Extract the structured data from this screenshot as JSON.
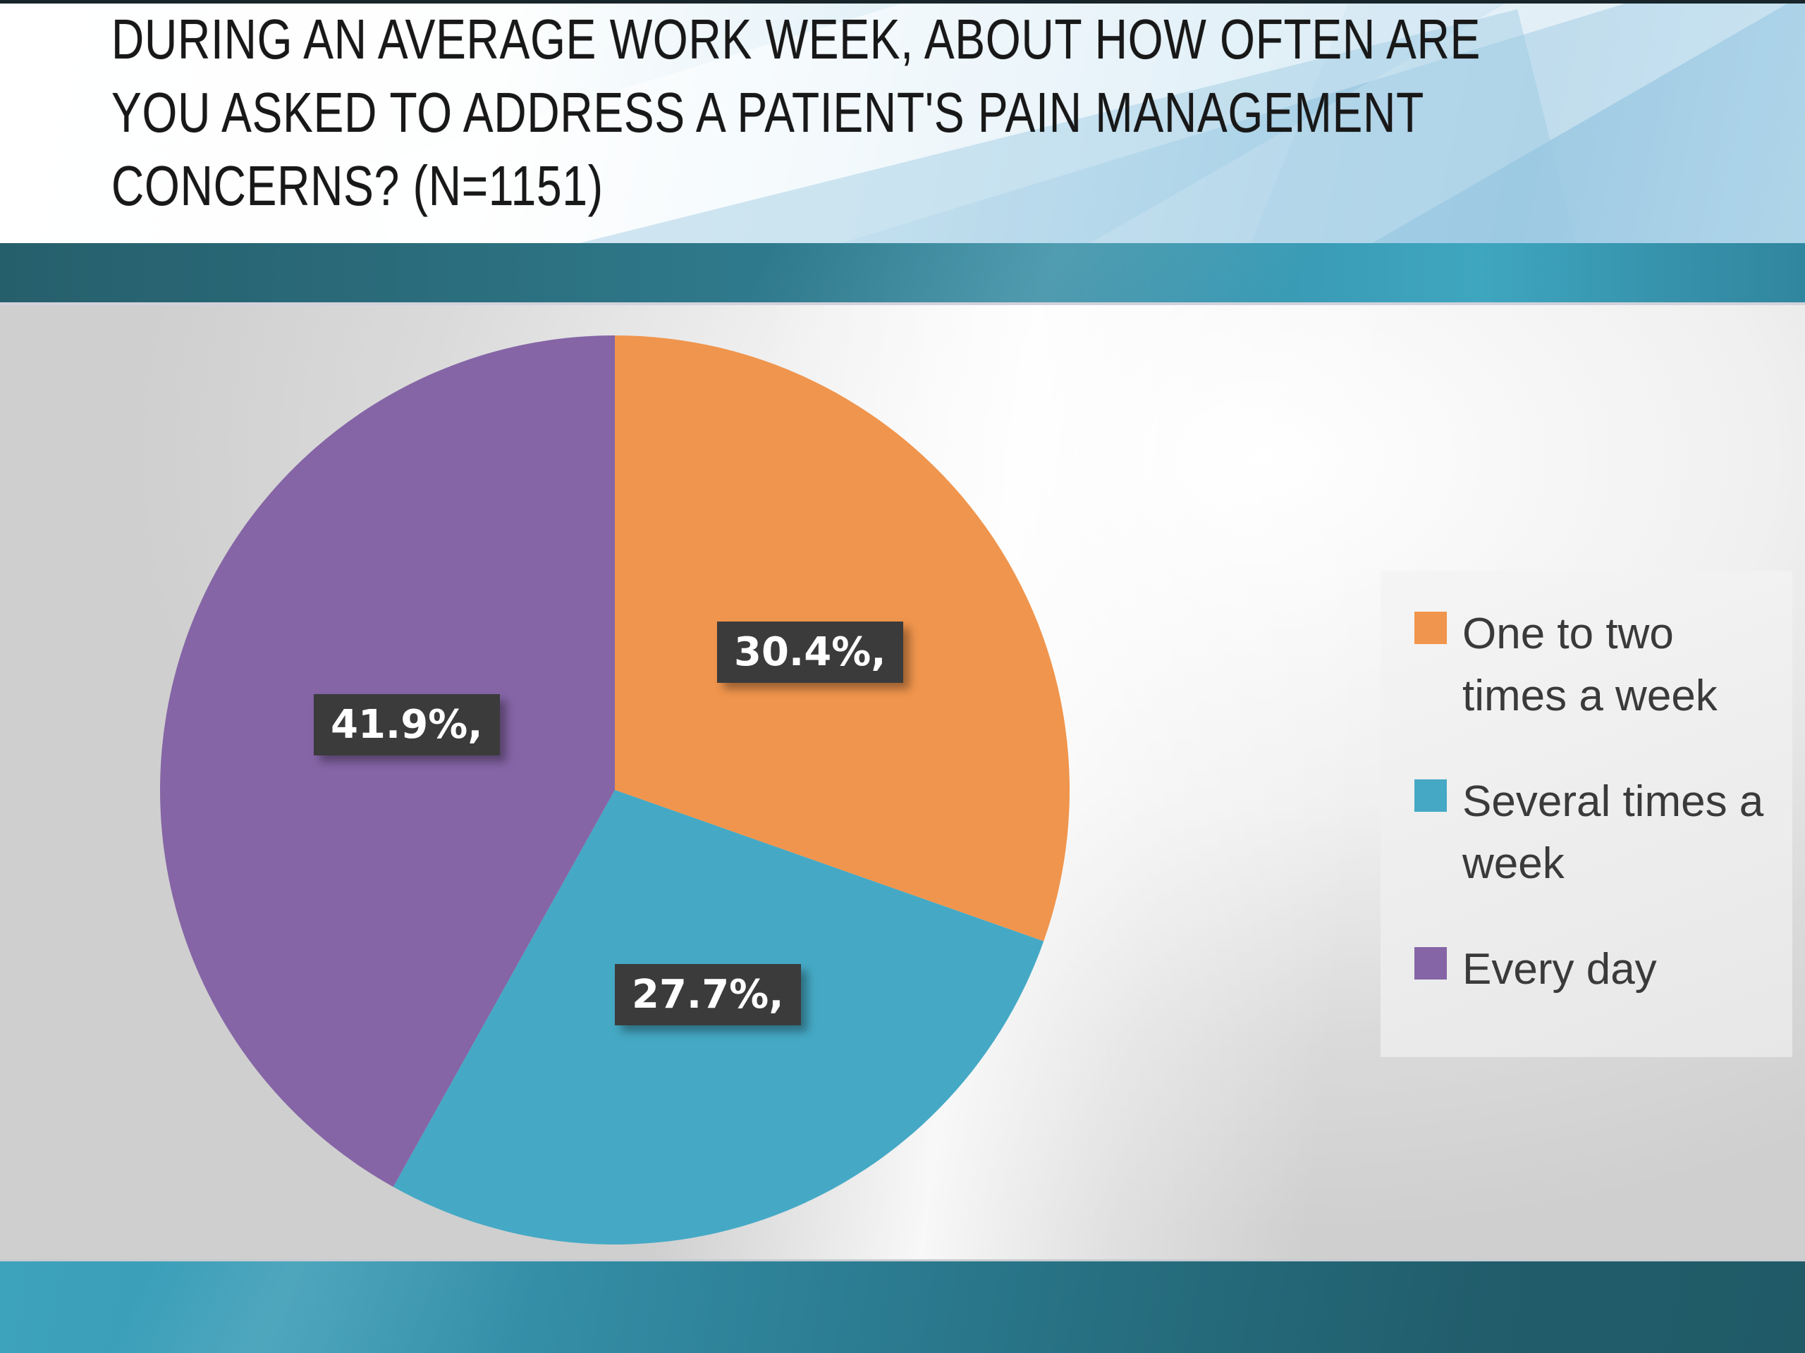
{
  "slide": {
    "title_lines": [
      "DURING AN AVERAGE WORK WEEK, ABOUT HOW OFTEN ARE",
      "YOU ASKED TO ADDRESS A PATIENT'S PAIN MANAGEMENT",
      "CONCERNS? (N=1151)"
    ]
  },
  "chart_data": {
    "type": "pie",
    "title": "During an average work week, about how often are you asked to address a patient's pain management concerns? (N=1151)",
    "sample_size_label": "N=1151",
    "categories": [
      "One to two times a week",
      "Several times a week",
      "Every day"
    ],
    "values": [
      30.4,
      27.7,
      41.9
    ],
    "unit": "%",
    "colors": [
      "#F0954D",
      "#45A9C5",
      "#8565A6"
    ],
    "data_labels": [
      "30.4%,",
      "27.7%,",
      "41.9%,"
    ],
    "start_angle_deg": 0,
    "direction": "clockwise",
    "legend_position": "right",
    "label_box_color": "#3B3B3B",
    "label_text_color": "#FFFFFF"
  },
  "legend": {
    "items": [
      {
        "label_lines": [
          "One to two",
          "times a week"
        ]
      },
      {
        "label_lines": [
          "Several times a",
          "week"
        ]
      },
      {
        "label_lines": [
          "Every day"
        ]
      }
    ]
  },
  "theme": {
    "band_teal_dark": "#215D6B",
    "band_teal_light": "#3FA6C0",
    "header_blue": "#A9D2E8",
    "title_color": "#181818"
  }
}
